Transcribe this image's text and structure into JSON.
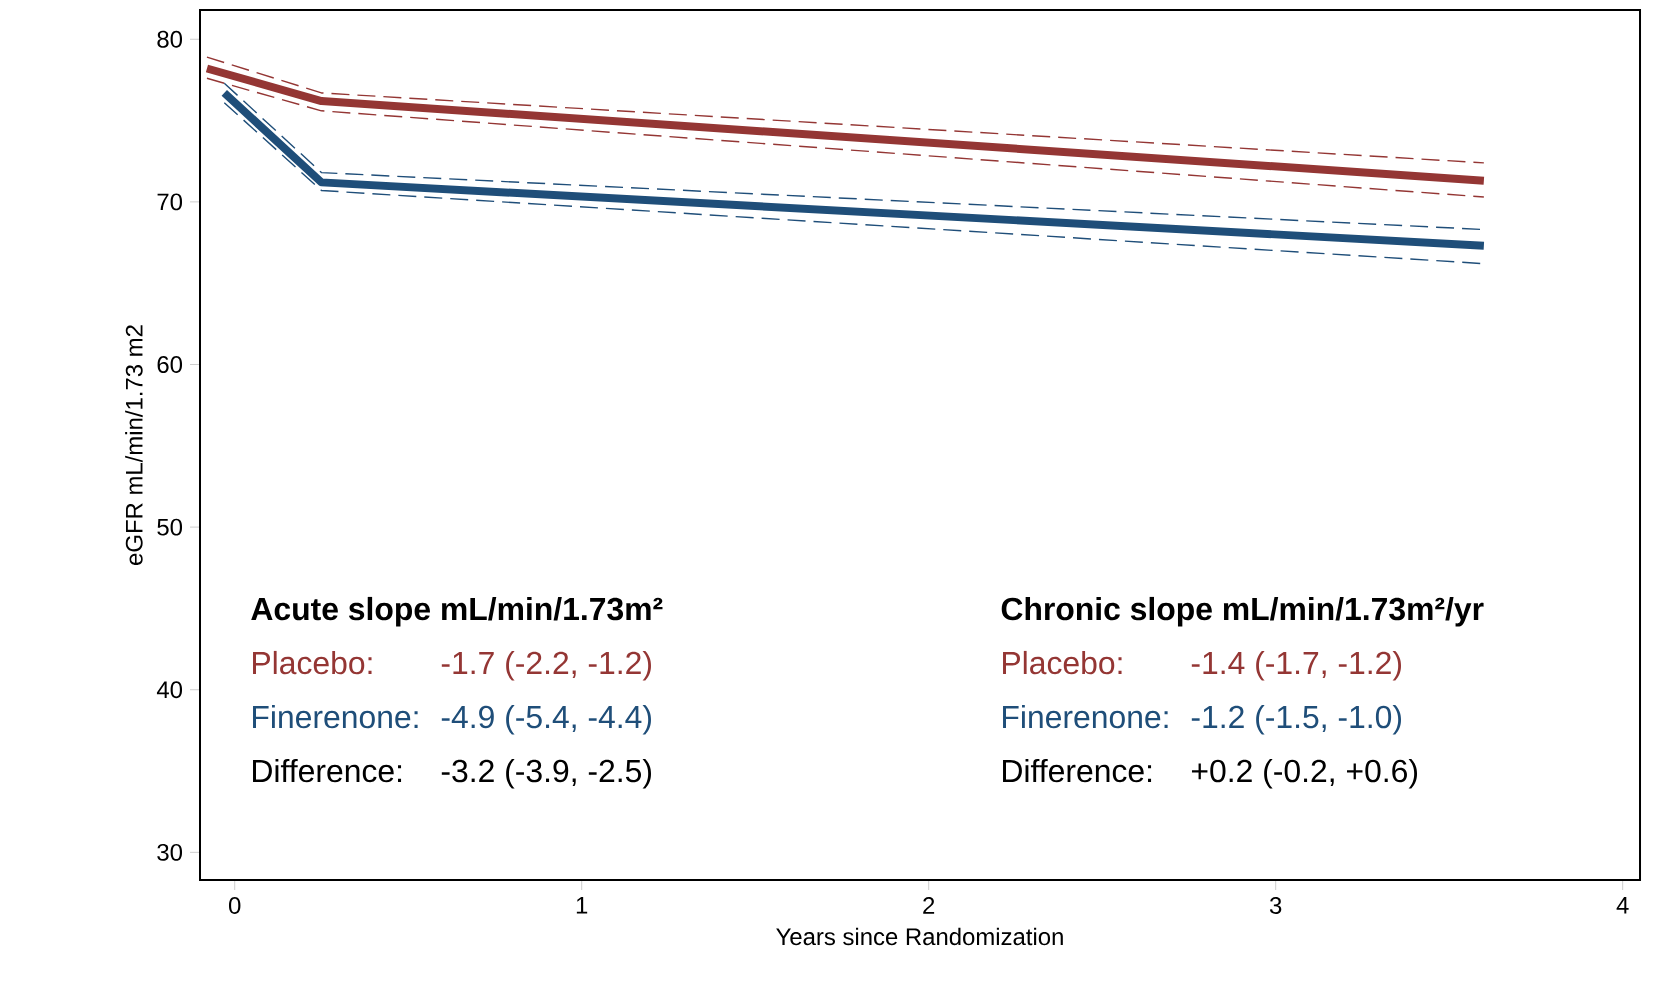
{
  "chart_data": {
    "type": "line",
    "xlabel": "Years since Randomization",
    "ylabel": "eGFR mL/min/1.73 m2",
    "xlim": [
      -0.1,
      4.05
    ],
    "ylim": [
      28.3,
      81.8
    ],
    "xticks": [
      0,
      1,
      2,
      3,
      4
    ],
    "yticks": [
      30,
      40,
      50,
      60,
      70,
      80
    ],
    "grid": false,
    "line_style": "solid",
    "marker": "none",
    "series": [
      {
        "color": "#943634",
        "x": [
          -0.08,
          0.25,
          3.6
        ],
        "values": [
          78.9,
          76.7,
          72.4
        ],
        "line_style": "dashed"
      },
      {
        "color": "#943634",
        "x": [
          -0.08,
          0.25,
          3.6
        ],
        "values": [
          77.6,
          75.6,
          70.3
        ],
        "line_style": "dashed"
      },
      {
        "color": "#1f4e79",
        "x": [
          -0.03,
          0.25,
          3.6
        ],
        "values": [
          77.3,
          71.8,
          68.3
        ],
        "line_style": "dashed"
      },
      {
        "color": "#1f4e79",
        "x": [
          -0.03,
          0.25,
          3.6
        ],
        "values": [
          76.1,
          70.7,
          66.2
        ],
        "line_style": "dashed"
      },
      {
        "color": "#943634",
        "x": [
          -0.08,
          0.25,
          3.6
        ],
        "values": [
          78.2,
          76.2,
          71.3
        ]
      },
      {
        "color": "#1f4e79",
        "x": [
          -0.03,
          0.25,
          3.6
        ],
        "values": [
          76.7,
          71.2,
          67.3
        ]
      }
    ],
    "annotations": [
      "Acute slope mL/min/1.73m²",
      "Placebo:",
      "-1.7 (-2.2, -1.2)",
      "Finerenone:",
      "-4.9 (-5.4, -4.4)",
      "Difference:",
      "-3.2 (-3.9, -2.5)",
      "Chronic slope mL/min/1.73m²/yr",
      "Placebo:",
      "-1.4 (-1.7, -1.2)",
      "Finerenone:",
      "-1.2 (-1.5, -1.0)",
      "Difference:",
      "+0.2 (-0.2, +0.6)"
    ]
  }
}
